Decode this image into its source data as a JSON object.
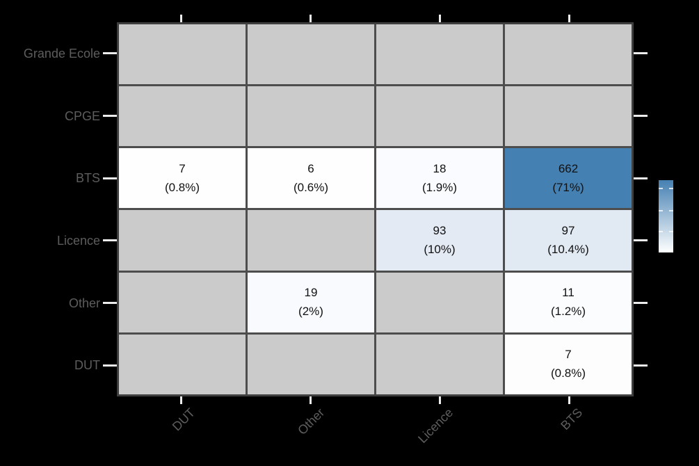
{
  "figure": {
    "background": "#000000",
    "panel_border_color": "#3f3f3f",
    "grid_line_color": "#4d4d4d",
    "axis_tick_color": "#ececec",
    "axis_label_color": "#5d5d5d",
    "cell_text_color": "#111111",
    "empty_cell_color": "#cbcbcb"
  },
  "chart_data": {
    "type": "heatmap",
    "title": "",
    "xlabel": "",
    "ylabel": "",
    "x_categories": [
      "DUT",
      "Other",
      "Licence",
      "BTS"
    ],
    "y_categories_top_to_bottom": [
      "Grande Ecole",
      "CPGE",
      "BTS",
      "Licence",
      "Other",
      "DUT"
    ],
    "cells": [
      {
        "row": "BTS",
        "col": "DUT",
        "count": 7,
        "pct": "(0.8%)",
        "fill": "#fefefe"
      },
      {
        "row": "BTS",
        "col": "Other",
        "count": 6,
        "pct": "(0.6%)",
        "fill": "#fefefe"
      },
      {
        "row": "BTS",
        "col": "Licence",
        "count": 18,
        "pct": "(1.9%)",
        "fill": "#f9fbfe"
      },
      {
        "row": "BTS",
        "col": "BTS",
        "count": 662,
        "pct": "(71%)",
        "fill": "#4580b2"
      },
      {
        "row": "Licence",
        "col": "Licence",
        "count": 93,
        "pct": "(10%)",
        "fill": "#e3eaf4"
      },
      {
        "row": "Licence",
        "col": "BTS",
        "count": 97,
        "pct": "(10.4%)",
        "fill": "#e1e9f3"
      },
      {
        "row": "Other",
        "col": "Other",
        "count": 19,
        "pct": "(2%)",
        "fill": "#f9fafd"
      },
      {
        "row": "Other",
        "col": "BTS",
        "count": 11,
        "pct": "(1.2%)",
        "fill": "#fbfcfe"
      },
      {
        "row": "DUT",
        "col": "BTS",
        "count": 7,
        "pct": "(0.8%)",
        "fill": "#fdfdfe"
      }
    ],
    "legend": {
      "position": "right",
      "gradient_top_color": "#4580b2",
      "gradient_bottom_color": "#ffffff",
      "tick_fractions_from_top": [
        0.105,
        0.41,
        0.705
      ]
    }
  }
}
